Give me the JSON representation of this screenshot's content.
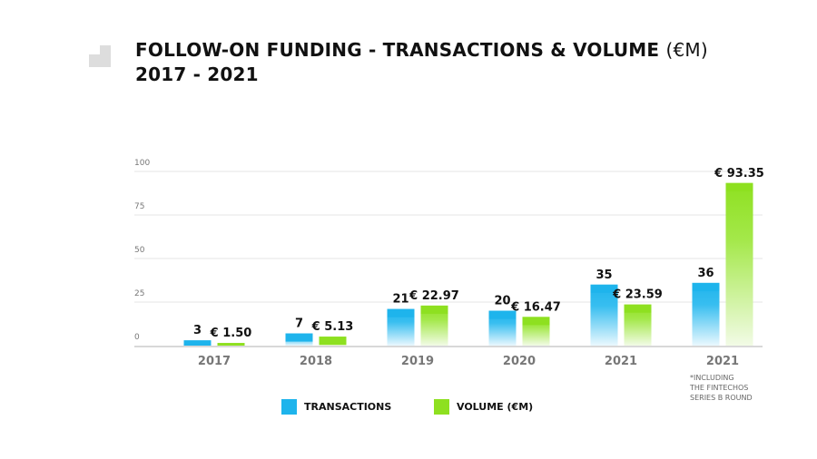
{
  "header": {
    "title_bold": "FOLLOW-ON FUNDING - TRANSACTIONS & VOLUME",
    "title_light": "(€M)",
    "subtitle": "2017 - 2021"
  },
  "colors": {
    "transactions": "#1eb4ec",
    "volume": "#8ee020",
    "grid": "#e6e6e6",
    "axis": "#cccccc"
  },
  "chart_data": {
    "type": "bar",
    "title": "FOLLOW-ON FUNDING - TRANSACTIONS & VOLUME (€M) 2017 - 2021",
    "categories": [
      "2017",
      "2018",
      "2019",
      "2020",
      "2021",
      "2021"
    ],
    "series": [
      {
        "name": "TRANSACTIONS",
        "values": [
          3,
          7,
          21,
          20,
          35,
          36
        ],
        "labels": [
          "3",
          "7",
          "21",
          "20",
          "35",
          "36"
        ]
      },
      {
        "name": "VOLUME (€M)",
        "values": [
          1.5,
          5.13,
          22.97,
          16.47,
          23.59,
          93.35
        ],
        "labels": [
          "€ 1.50",
          "€ 5.13",
          "€ 22.97",
          "€ 16.47",
          "€ 23.59",
          "€ 93.35"
        ]
      }
    ],
    "ylim": [
      0,
      100
    ],
    "yticks": [
      "0",
      "25",
      "50",
      "75",
      "100"
    ],
    "xlabel": "",
    "ylabel": "",
    "grid": true,
    "legend_position": "bottom-center",
    "annotation": "*INCLUDING\n THE FINTECHOS\nSERIES B ROUND"
  }
}
